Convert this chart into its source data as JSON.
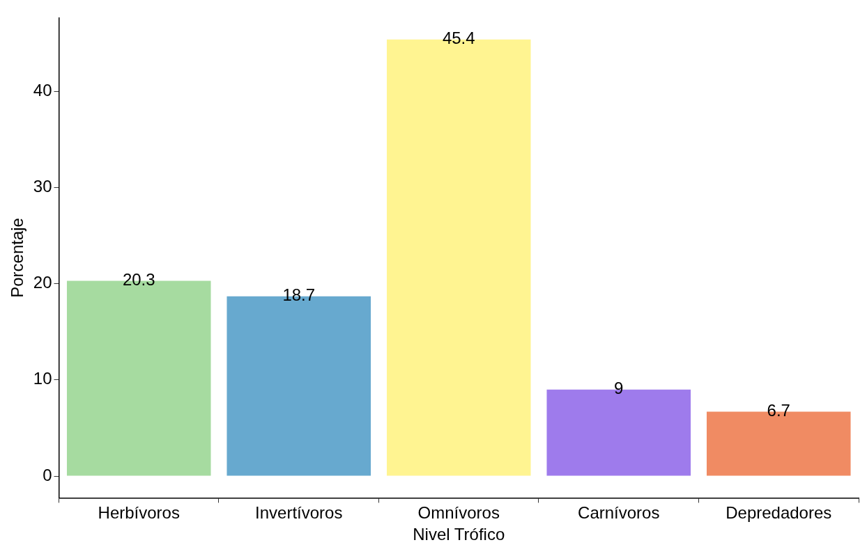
{
  "chart_data": {
    "type": "bar",
    "xlabel": "Nivel Trófico",
    "ylabel": "Porcentaje",
    "categories": [
      "Herbívoros",
      "Invertívoros",
      "Omnívoros",
      "Carnívoros",
      "Depredadores"
    ],
    "values": [
      20.3,
      18.7,
      45.4,
      9,
      6.7
    ],
    "colors": [
      "#a6dba0",
      "#67a9cf",
      "#fff491",
      "#9e7bec",
      "#f08b63"
    ],
    "ylim": [
      -2.27,
      47.67
    ],
    "yticks": [
      0,
      10,
      20,
      30,
      40
    ],
    "data_labels": true,
    "grid": false,
    "legend": false
  }
}
